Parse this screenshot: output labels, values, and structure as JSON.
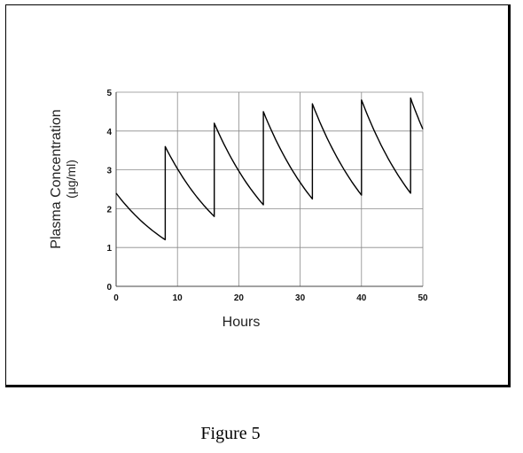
{
  "chart_data": {
    "type": "line",
    "title": "",
    "xlabel": "Hours",
    "ylabel": "Plasma Concentration",
    "ylabel_units": "(µg/ml)",
    "xlim": [
      0,
      50
    ],
    "ylim": [
      0,
      5
    ],
    "x_ticks": [
      0,
      10,
      20,
      30,
      40,
      50
    ],
    "y_ticks": [
      0,
      1,
      2,
      3,
      4,
      5
    ],
    "grid": true,
    "legend": "none",
    "line_color": "#000000",
    "series": [
      {
        "x": [
          0,
          8,
          8,
          16,
          16,
          24,
          24,
          32,
          32,
          40,
          40,
          48,
          48,
          50
        ],
        "y": [
          2.4,
          1.2,
          3.6,
          1.8,
          4.2,
          2.1,
          4.5,
          2.25,
          4.7,
          2.35,
          4.8,
          2.4,
          4.85,
          4.05
        ]
      }
    ]
  },
  "figure": {
    "caption": "Figure 5"
  }
}
